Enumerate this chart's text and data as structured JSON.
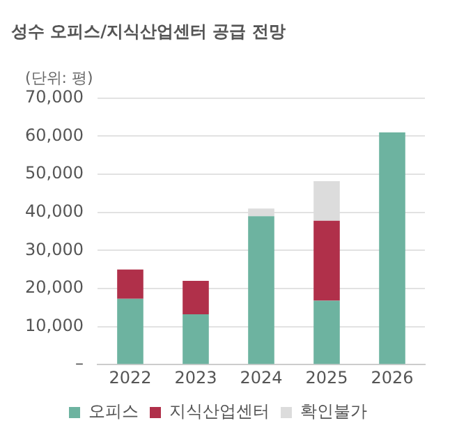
{
  "chart_data": {
    "type": "bar",
    "title": "성수 오피스/지식산업센터 공급 전망",
    "ylabel": "(단위: 평)",
    "categories": [
      "2022",
      "2023",
      "2024",
      "2025",
      "2026"
    ],
    "stacked": true,
    "series": [
      {
        "name": "오피스",
        "color": "#6db3a0",
        "values": [
          17300,
          13200,
          39000,
          16800,
          61000
        ]
      },
      {
        "name": "지식산업센터",
        "color": "#b0304a",
        "values": [
          7700,
          8800,
          0,
          21000,
          0
        ]
      },
      {
        "name": "확인불가",
        "color": "#dcdcdc",
        "values": [
          0,
          0,
          2000,
          10400,
          0
        ]
      }
    ],
    "ylim": [
      0,
      70000
    ],
    "yticks": [
      {
        "value": 0,
        "label": "–"
      },
      {
        "value": 10000,
        "label": "10,000"
      },
      {
        "value": 20000,
        "label": "20,000"
      },
      {
        "value": 30000,
        "label": "30,000"
      },
      {
        "value": 40000,
        "label": "40,000"
      },
      {
        "value": 50000,
        "label": "50,000"
      },
      {
        "value": 60000,
        "label": "60,000"
      },
      {
        "value": 70000,
        "label": "70,000"
      }
    ],
    "grid": "y",
    "legend": "bottom"
  }
}
